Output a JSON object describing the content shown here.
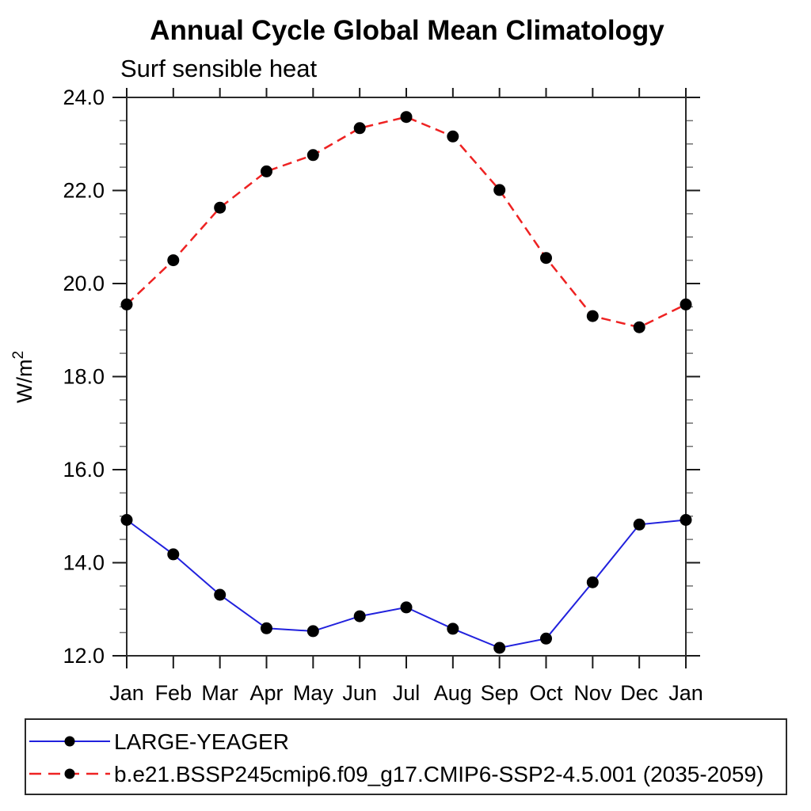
{
  "header": {
    "title": "Annual Cycle Global Mean Climatology",
    "subtitle": "Surf sensible heat"
  },
  "y_axis": {
    "label_base": "W/m",
    "label_exponent": "2"
  },
  "colors": {
    "background": "#ffffff",
    "frame": "#2a2a2a",
    "major_tick": "#1a1a1a",
    "minor_tick": "#707070",
    "marker": "#000000",
    "series_blue": "#2121dd",
    "series_red": "#ee2222"
  },
  "chart_data": {
    "type": "line",
    "title": "Annual Cycle Global Mean Climatology",
    "subtitle": "Surf sensible heat",
    "xlabel": "",
    "ylabel": "W/m2",
    "x_categories": [
      "Jan",
      "Feb",
      "Mar",
      "Apr",
      "May",
      "Jun",
      "Jul",
      "Aug",
      "Sep",
      "Oct",
      "Nov",
      "Dec",
      "Jan"
    ],
    "ylim": [
      12.0,
      24.0
    ],
    "ytick_major_step": 2.0,
    "ytick_minor_step": 0.5,
    "ytick_labels": [
      "12.0",
      "14.0",
      "16.0",
      "18.0",
      "20.0",
      "22.0",
      "24.0"
    ],
    "grid": false,
    "legend_position": "bottom",
    "series": [
      {
        "name": "LARGE-YEAGER",
        "color": "#2121dd",
        "line_style": "solid",
        "marker": "filled-circle",
        "marker_color": "#000000",
        "values": [
          14.92,
          14.18,
          13.31,
          12.59,
          12.53,
          12.85,
          13.04,
          12.58,
          12.17,
          12.37,
          13.58,
          14.82,
          14.92
        ]
      },
      {
        "name": "b.e21.BSSP245cmip6.f09_g17.CMIP6-SSP2-4.5.001 (2035-2059)",
        "color": "#ee2222",
        "line_style": "dashed",
        "marker": "filled-circle",
        "marker_color": "#000000",
        "values": [
          19.55,
          20.5,
          21.63,
          22.41,
          22.76,
          23.34,
          23.58,
          23.16,
          22.01,
          20.55,
          19.3,
          19.06,
          19.55
        ]
      }
    ]
  }
}
